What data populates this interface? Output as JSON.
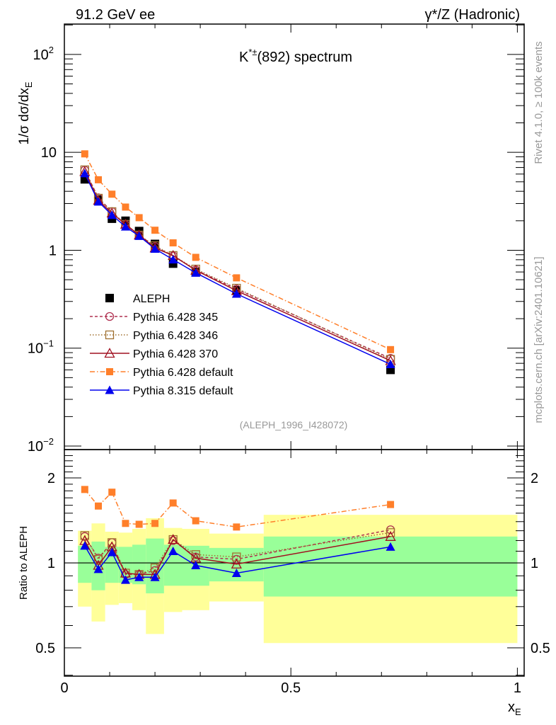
{
  "chart_data": {
    "type": "scatter",
    "energy_label": "91.2 GeV ee",
    "process_label": "γ*/Z (Hadronic)",
    "title": "K*±(892) spectrum",
    "title_main": "K",
    "title_sup": "*±",
    "title_rest": "(892) spectrum",
    "analysis": "(ALEPH_1996_I428072)",
    "side_label_1": "Rivet 4.1.0, ≥ 100k events",
    "side_label_2": "mcplots.cern.ch [arXiv:2401.10621]",
    "ylabel": "1/σ  dσ/dx_E",
    "ylabel_a": "1/σ  dσ/dx",
    "ylabel_sub": "E",
    "xlabel": "x_E",
    "xlabel_a": "x",
    "xlabel_sub": "E",
    "ratio_ylabel": "Ratio to ALEPH",
    "xlim": [
      0,
      1.015
    ],
    "ylim_log10": [
      -2.036,
      2.31
    ],
    "ratio_ylim": [
      0.397,
      2.52
    ],
    "x_ticks": [
      {
        "v": 0,
        "label": "0"
      },
      {
        "v": 0.5,
        "label": "0.5"
      },
      {
        "v": 1,
        "label": "1"
      }
    ],
    "y_ticks": [
      {
        "v": 100,
        "label": "10",
        "sup": "2"
      },
      {
        "v": 10,
        "label": "10",
        "sup": ""
      },
      {
        "v": 1,
        "label": "1",
        "sup": ""
      },
      {
        "v": 0.1,
        "label": "10",
        "sup": "−1"
      },
      {
        "v": 0.01,
        "label": "10",
        "sup": "−2"
      }
    ],
    "ratio_ticks": [
      {
        "v": 2,
        "label": "2"
      },
      {
        "v": 1,
        "label": "1"
      },
      {
        "v": 0.5,
        "label": "0.5"
      }
    ],
    "bin_edges": [
      0.03,
      0.06,
      0.09,
      0.12,
      0.15,
      0.18,
      0.22,
      0.26,
      0.32,
      0.44,
      1.0
    ],
    "x": [
      0.045,
      0.075,
      0.105,
      0.135,
      0.165,
      0.2,
      0.24,
      0.29,
      0.38,
      0.72
    ],
    "data": {
      "name": "ALEPH",
      "values": [
        5.3,
        3.3,
        2.1,
        2.0,
        1.57,
        1.16,
        0.73,
        0.6,
        0.39,
        0.06
      ]
    },
    "band_inner": {
      "lo": [
        0.85,
        0.8,
        0.85,
        0.85,
        0.84,
        0.78,
        0.83,
        0.83,
        0.86,
        0.76
      ],
      "hi": [
        1.15,
        1.19,
        1.14,
        1.14,
        1.16,
        1.22,
        1.16,
        1.15,
        1.13,
        1.24
      ],
      "color": "#99ff99"
    },
    "band_outer": {
      "lo": [
        0.7,
        0.62,
        0.71,
        0.72,
        0.68,
        0.56,
        0.67,
        0.68,
        0.73,
        0.52
      ],
      "hi": [
        1.3,
        1.38,
        1.29,
        1.28,
        1.32,
        1.44,
        1.33,
        1.32,
        1.27,
        1.48
      ],
      "color": "#ffff99"
    },
    "series": [
      {
        "name": "Pythia 6.428 345",
        "color": "#b03050",
        "dash": "4,3",
        "marker": "circle",
        "ratio": [
          1.24,
          1.04,
          1.18,
          0.91,
          0.91,
          0.94,
          1.2,
          1.05,
          1.03,
          1.31
        ]
      },
      {
        "name": "Pythia 6.428 346",
        "color": "#a07030",
        "dash": "1.5,2.5",
        "marker": "square-open",
        "ratio": [
          1.25,
          1.03,
          1.18,
          0.92,
          0.91,
          0.96,
          1.21,
          1.07,
          1.05,
          1.28
        ]
      },
      {
        "name": "Pythia 6.428 370",
        "color": "#a01020",
        "dash": "",
        "marker": "triangle-open",
        "ratio": [
          1.2,
          0.98,
          1.14,
          0.92,
          0.91,
          0.91,
          1.21,
          1.04,
          0.99,
          1.24
        ]
      },
      {
        "name": "Pythia 6.428 default",
        "color": "#ff7f2a",
        "dash": "7,3,1.5,3",
        "marker": "square-filled",
        "ratio": [
          1.82,
          1.59,
          1.78,
          1.38,
          1.37,
          1.38,
          1.63,
          1.41,
          1.34,
          1.61
        ]
      },
      {
        "name": "Pythia 8.315 default",
        "color": "#0000ee",
        "dash": "",
        "marker": "triangle-filled",
        "ratio": [
          1.15,
          0.95,
          1.09,
          0.87,
          0.89,
          0.89,
          1.1,
          0.98,
          0.92,
          1.14
        ]
      }
    ]
  }
}
